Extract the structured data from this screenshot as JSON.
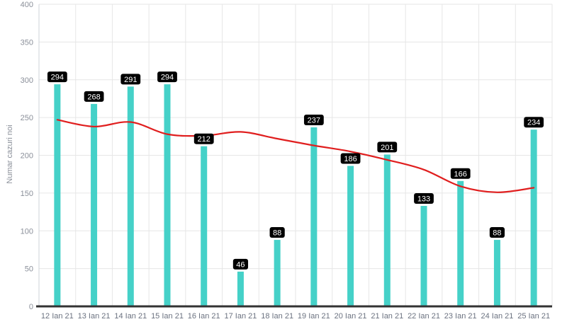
{
  "chart_data": {
    "type": "bar",
    "categories": [
      "12 Ian 21",
      "13 Ian 21",
      "14 Ian 21",
      "15 Ian 21",
      "16 Ian 21",
      "17 Ian 21",
      "18 Ian 21",
      "19 Ian 21",
      "20 Ian 21",
      "21 Ian 21",
      "22 Ian 21",
      "23 Ian 21",
      "24 Ian 21",
      "25 Ian 21"
    ],
    "series": [
      {
        "type": "bar",
        "values": [
          294,
          268,
          291,
          294,
          212,
          46,
          88,
          237,
          186,
          201,
          133,
          166,
          88,
          234
        ],
        "color": "#45d1c8"
      },
      {
        "type": "line",
        "values": [
          247,
          238,
          244,
          228,
          226,
          231,
          222,
          213,
          205,
          194,
          181,
          159,
          151,
          157
        ],
        "color": "#e01e1e"
      }
    ],
    "ylabel": "Numar cazuri noi",
    "xlabel": "",
    "ylim": [
      0,
      400
    ],
    "yticks": [
      0,
      50,
      100,
      150,
      200,
      250,
      300,
      350,
      400
    ],
    "grid": true,
    "data_labels": true
  }
}
